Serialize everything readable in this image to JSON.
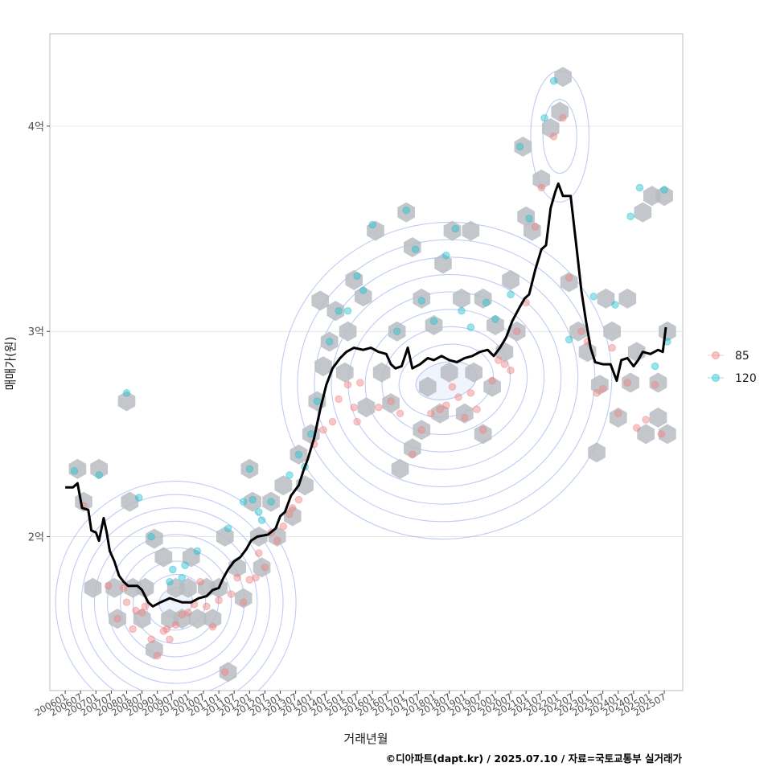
{
  "chart_data": {
    "type": "scatter",
    "xlabel": "거래년월",
    "ylabel": "매매가(원)",
    "caption": "©디아파트(dapt.kr) / 2025.07.10 / 자료=국토교통부 실거래가",
    "y_tick_labels": [
      "2억",
      "3억",
      "4억"
    ],
    "y_ticks": [
      2.0,
      3.0,
      4.0
    ],
    "ylim": [
      1.25,
      4.45
    ],
    "xlim": [
      2005.5,
      2026.1
    ],
    "x_tick_labels": [
      "200601",
      "200607",
      "200701",
      "200707",
      "200801",
      "200807",
      "200901",
      "200907",
      "201001",
      "201007",
      "201101",
      "201107",
      "201201",
      "201207",
      "201301",
      "201307",
      "201401",
      "201407",
      "201501",
      "201507",
      "201601",
      "201607",
      "201701",
      "201707",
      "201801",
      "201807",
      "201901",
      "201907",
      "202001",
      "202007",
      "202101",
      "202107",
      "202201",
      "202207",
      "202301",
      "202307",
      "202401",
      "202407",
      "202501",
      "202507"
    ],
    "grid": true,
    "legend_position": "right",
    "colors": {
      "size_85": "#f08080",
      "size_120": "#20c0d0",
      "hex": "#b8bcc2",
      "contour": "#6f8fe8",
      "trend": "#000000"
    },
    "legend": [
      {
        "label": "85",
        "color": "#f08080"
      },
      {
        "label": "120",
        "color": "#20c0d0"
      }
    ],
    "series": [
      {
        "name": "85",
        "points": [
          [
            2006.6,
            2.15
          ],
          [
            2007.4,
            1.76
          ],
          [
            2007.7,
            1.6
          ],
          [
            2007.9,
            1.75
          ],
          [
            2008.0,
            1.68
          ],
          [
            2008.2,
            1.55
          ],
          [
            2008.3,
            1.64
          ],
          [
            2008.5,
            1.63
          ],
          [
            2008.6,
            1.66
          ],
          [
            2008.8,
            1.5
          ],
          [
            2009.0,
            1.42
          ],
          [
            2009.2,
            1.54
          ],
          [
            2009.3,
            1.55
          ],
          [
            2009.4,
            1.5
          ],
          [
            2009.6,
            1.57
          ],
          [
            2009.8,
            1.62
          ],
          [
            2010.0,
            1.63
          ],
          [
            2010.2,
            1.67
          ],
          [
            2010.4,
            1.78
          ],
          [
            2010.6,
            1.66
          ],
          [
            2010.8,
            1.56
          ],
          [
            2011.0,
            1.69
          ],
          [
            2011.2,
            1.34
          ],
          [
            2011.4,
            1.72
          ],
          [
            2011.6,
            1.8
          ],
          [
            2011.8,
            1.68
          ],
          [
            2012.0,
            1.79
          ],
          [
            2012.2,
            1.8
          ],
          [
            2012.3,
            1.92
          ],
          [
            2012.5,
            1.85
          ],
          [
            2012.7,
            2.02
          ],
          [
            2012.9,
            1.98
          ],
          [
            2013.1,
            2.05
          ],
          [
            2013.3,
            2.11
          ],
          [
            2013.4,
            2.14
          ],
          [
            2013.6,
            2.18
          ],
          [
            2014.1,
            2.45
          ],
          [
            2014.4,
            2.52
          ],
          [
            2014.7,
            2.56
          ],
          [
            2014.9,
            2.67
          ],
          [
            2015.2,
            2.74
          ],
          [
            2015.4,
            2.63
          ],
          [
            2015.5,
            2.56
          ],
          [
            2015.6,
            2.75
          ],
          [
            2016.2,
            2.63
          ],
          [
            2016.6,
            2.66
          ],
          [
            2016.9,
            2.6
          ],
          [
            2017.3,
            2.4
          ],
          [
            2017.6,
            2.52
          ],
          [
            2017.9,
            2.6
          ],
          [
            2018.2,
            2.62
          ],
          [
            2018.4,
            2.64
          ],
          [
            2018.6,
            2.73
          ],
          [
            2018.8,
            2.68
          ],
          [
            2019.0,
            2.58
          ],
          [
            2019.2,
            2.7
          ],
          [
            2019.4,
            2.62
          ],
          [
            2019.6,
            2.52
          ],
          [
            2019.9,
            2.76
          ],
          [
            2020.1,
            2.86
          ],
          [
            2020.3,
            2.84
          ],
          [
            2020.5,
            2.81
          ],
          [
            2020.7,
            3.0
          ],
          [
            2021.0,
            3.14
          ],
          [
            2021.3,
            3.51
          ],
          [
            2021.5,
            3.7
          ],
          [
            2021.9,
            3.95
          ],
          [
            2022.2,
            4.04
          ],
          [
            2022.4,
            3.26
          ],
          [
            2022.8,
            3.0
          ],
          [
            2023.0,
            2.95
          ],
          [
            2023.3,
            2.7
          ],
          [
            2023.5,
            2.72
          ],
          [
            2023.8,
            2.92
          ],
          [
            2024.0,
            2.6
          ],
          [
            2024.3,
            2.75
          ],
          [
            2024.6,
            2.53
          ],
          [
            2024.9,
            2.57
          ],
          [
            2025.2,
            2.74
          ],
          [
            2025.4,
            2.5
          ]
        ]
      },
      {
        "name": "120",
        "points": [
          [
            2006.3,
            2.32
          ],
          [
            2007.1,
            2.3
          ],
          [
            2008.0,
            2.7
          ],
          [
            2008.4,
            2.19
          ],
          [
            2008.8,
            2.0
          ],
          [
            2009.4,
            1.78
          ],
          [
            2009.5,
            1.84
          ],
          [
            2009.8,
            1.8
          ],
          [
            2009.9,
            1.86
          ],
          [
            2010.3,
            1.93
          ],
          [
            2011.3,
            2.04
          ],
          [
            2011.8,
            2.17
          ],
          [
            2012.0,
            2.33
          ],
          [
            2012.1,
            2.18
          ],
          [
            2012.3,
            2.12
          ],
          [
            2012.4,
            2.08
          ],
          [
            2012.7,
            2.17
          ],
          [
            2013.3,
            2.3
          ],
          [
            2013.6,
            2.4
          ],
          [
            2013.8,
            2.34
          ],
          [
            2014.0,
            2.5
          ],
          [
            2014.2,
            2.66
          ],
          [
            2014.6,
            2.95
          ],
          [
            2014.9,
            3.1
          ],
          [
            2015.2,
            3.1
          ],
          [
            2015.5,
            3.27
          ],
          [
            2015.7,
            3.2
          ],
          [
            2016.0,
            3.52
          ],
          [
            2016.8,
            3.0
          ],
          [
            2017.1,
            3.59
          ],
          [
            2017.4,
            3.4
          ],
          [
            2017.6,
            3.15
          ],
          [
            2018.0,
            3.05
          ],
          [
            2018.4,
            3.37
          ],
          [
            2018.7,
            3.5
          ],
          [
            2018.9,
            3.1
          ],
          [
            2019.2,
            3.02
          ],
          [
            2019.7,
            3.14
          ],
          [
            2020.0,
            3.06
          ],
          [
            2020.5,
            3.18
          ],
          [
            2020.8,
            3.9
          ],
          [
            2021.1,
            3.55
          ],
          [
            2021.6,
            4.04
          ],
          [
            2021.9,
            4.22
          ],
          [
            2022.4,
            2.96
          ],
          [
            2023.2,
            3.17
          ],
          [
            2023.9,
            3.13
          ],
          [
            2024.4,
            3.56
          ],
          [
            2024.7,
            3.7
          ],
          [
            2025.2,
            2.83
          ],
          [
            2025.5,
            3.69
          ],
          [
            2025.6,
            2.95
          ]
        ]
      }
    ],
    "hexbins": [
      [
        2006.4,
        2.33
      ],
      [
        2006.6,
        2.17
      ],
      [
        2007.1,
        2.33
      ],
      [
        2006.9,
        1.75
      ],
      [
        2007.7,
        1.6
      ],
      [
        2007.6,
        1.75
      ],
      [
        2008.0,
        2.66
      ],
      [
        2008.1,
        2.17
      ],
      [
        2008.2,
        1.75
      ],
      [
        2008.5,
        1.6
      ],
      [
        2008.6,
        1.75
      ],
      [
        2008.9,
        1.99
      ],
      [
        2008.9,
        1.45
      ],
      [
        2009.2,
        1.9
      ],
      [
        2009.4,
        1.6
      ],
      [
        2009.6,
        1.75
      ],
      [
        2009.8,
        1.6
      ],
      [
        2010.1,
        1.9
      ],
      [
        2010.0,
        1.75
      ],
      [
        2010.3,
        1.6
      ],
      [
        2010.6,
        1.75
      ],
      [
        2010.8,
        1.6
      ],
      [
        2011.0,
        1.75
      ],
      [
        2011.3,
        1.34
      ],
      [
        2011.2,
        2.0
      ],
      [
        2011.6,
        1.85
      ],
      [
        2011.8,
        1.7
      ],
      [
        2012.0,
        2.33
      ],
      [
        2012.1,
        2.17
      ],
      [
        2012.3,
        2.0
      ],
      [
        2012.4,
        1.85
      ],
      [
        2012.7,
        2.17
      ],
      [
        2012.9,
        2.0
      ],
      [
        2013.1,
        2.25
      ],
      [
        2013.4,
        2.1
      ],
      [
        2013.6,
        2.4
      ],
      [
        2013.8,
        2.25
      ],
      [
        2014.0,
        2.5
      ],
      [
        2014.2,
        2.66
      ],
      [
        2014.4,
        2.83
      ],
      [
        2014.3,
        3.15
      ],
      [
        2014.6,
        2.95
      ],
      [
        2014.8,
        3.1
      ],
      [
        2015.1,
        2.8
      ],
      [
        2015.2,
        3.0
      ],
      [
        2015.4,
        3.25
      ],
      [
        2015.7,
        3.17
      ],
      [
        2015.8,
        2.63
      ],
      [
        2016.1,
        3.49
      ],
      [
        2016.3,
        2.8
      ],
      [
        2016.6,
        2.65
      ],
      [
        2016.8,
        3.0
      ],
      [
        2016.9,
        2.33
      ],
      [
        2017.1,
        3.58
      ],
      [
        2017.3,
        3.41
      ],
      [
        2017.3,
        2.43
      ],
      [
        2017.6,
        2.52
      ],
      [
        2017.6,
        3.16
      ],
      [
        2017.8,
        2.73
      ],
      [
        2018.0,
        3.03
      ],
      [
        2018.3,
        3.33
      ],
      [
        2018.2,
        2.6
      ],
      [
        2018.5,
        2.8
      ],
      [
        2018.6,
        3.49
      ],
      [
        2018.9,
        3.16
      ],
      [
        2019.0,
        2.6
      ],
      [
        2019.2,
        3.49
      ],
      [
        2019.3,
        2.8
      ],
      [
        2019.6,
        3.16
      ],
      [
        2019.6,
        2.5
      ],
      [
        2019.9,
        2.73
      ],
      [
        2020.0,
        3.03
      ],
      [
        2020.3,
        2.9
      ],
      [
        2020.5,
        3.25
      ],
      [
        2020.7,
        3.0
      ],
      [
        2020.9,
        3.9
      ],
      [
        2021.0,
        3.56
      ],
      [
        2021.2,
        3.49
      ],
      [
        2021.5,
        3.74
      ],
      [
        2021.8,
        3.99
      ],
      [
        2022.1,
        4.07
      ],
      [
        2022.2,
        4.24
      ],
      [
        2022.4,
        3.24
      ],
      [
        2022.7,
        3.0
      ],
      [
        2023.0,
        2.9
      ],
      [
        2023.3,
        2.41
      ],
      [
        2023.4,
        2.74
      ],
      [
        2023.6,
        3.16
      ],
      [
        2023.8,
        3.0
      ],
      [
        2024.0,
        2.58
      ],
      [
        2024.3,
        3.16
      ],
      [
        2024.4,
        2.75
      ],
      [
        2024.6,
        2.9
      ],
      [
        2024.8,
        3.58
      ],
      [
        2024.9,
        2.5
      ],
      [
        2025.1,
        3.66
      ],
      [
        2025.3,
        2.58
      ],
      [
        2025.3,
        2.75
      ],
      [
        2025.5,
        3.66
      ],
      [
        2025.6,
        3.0
      ],
      [
        2025.6,
        2.5
      ]
    ],
    "trend_line": [
      [
        2006.0,
        2.24
      ],
      [
        2006.25,
        2.24
      ],
      [
        2006.4,
        2.26
      ],
      [
        2006.55,
        2.14
      ],
      [
        2006.75,
        2.13
      ],
      [
        2006.85,
        2.03
      ],
      [
        2007.0,
        2.02
      ],
      [
        2007.1,
        1.98
      ],
      [
        2007.25,
        2.09
      ],
      [
        2007.35,
        2.02
      ],
      [
        2007.45,
        1.93
      ],
      [
        2007.6,
        1.88
      ],
      [
        2007.75,
        1.81
      ],
      [
        2007.9,
        1.78
      ],
      [
        2008.05,
        1.76
      ],
      [
        2008.35,
        1.76
      ],
      [
        2008.5,
        1.74
      ],
      [
        2008.7,
        1.68
      ],
      [
        2008.85,
        1.66
      ],
      [
        2009.1,
        1.68
      ],
      [
        2009.4,
        1.7
      ],
      [
        2009.6,
        1.69
      ],
      [
        2009.8,
        1.68
      ],
      [
        2010.1,
        1.68
      ],
      [
        2010.35,
        1.7
      ],
      [
        2010.6,
        1.71
      ],
      [
        2010.8,
        1.74
      ],
      [
        2011.0,
        1.75
      ],
      [
        2011.15,
        1.8
      ],
      [
        2011.3,
        1.84
      ],
      [
        2011.5,
        1.88
      ],
      [
        2011.7,
        1.9
      ],
      [
        2011.9,
        1.94
      ],
      [
        2012.05,
        1.98
      ],
      [
        2012.25,
        2.0
      ],
      [
        2012.6,
        2.01
      ],
      [
        2012.85,
        2.04
      ],
      [
        2013.0,
        2.1
      ],
      [
        2013.15,
        2.12
      ],
      [
        2013.35,
        2.2
      ],
      [
        2013.6,
        2.25
      ],
      [
        2013.75,
        2.32
      ],
      [
        2013.9,
        2.38
      ],
      [
        2014.1,
        2.48
      ],
      [
        2014.3,
        2.62
      ],
      [
        2014.5,
        2.74
      ],
      [
        2014.7,
        2.82
      ],
      [
        2014.95,
        2.87
      ],
      [
        2015.15,
        2.9
      ],
      [
        2015.4,
        2.92
      ],
      [
        2015.7,
        2.91
      ],
      [
        2015.95,
        2.92
      ],
      [
        2016.2,
        2.9
      ],
      [
        2016.45,
        2.89
      ],
      [
        2016.6,
        2.84
      ],
      [
        2016.75,
        2.82
      ],
      [
        2016.95,
        2.83
      ],
      [
        2017.15,
        2.92
      ],
      [
        2017.3,
        2.82
      ],
      [
        2017.55,
        2.84
      ],
      [
        2017.8,
        2.87
      ],
      [
        2018.0,
        2.86
      ],
      [
        2018.25,
        2.88
      ],
      [
        2018.5,
        2.86
      ],
      [
        2018.75,
        2.85
      ],
      [
        2019.0,
        2.87
      ],
      [
        2019.25,
        2.88
      ],
      [
        2019.5,
        2.9
      ],
      [
        2019.75,
        2.91
      ],
      [
        2019.95,
        2.88
      ],
      [
        2020.15,
        2.92
      ],
      [
        2020.35,
        2.97
      ],
      [
        2020.55,
        3.05
      ],
      [
        2020.8,
        3.12
      ],
      [
        2020.95,
        3.16
      ],
      [
        2021.1,
        3.18
      ],
      [
        2021.3,
        3.3
      ],
      [
        2021.5,
        3.4
      ],
      [
        2021.65,
        3.42
      ],
      [
        2021.8,
        3.6
      ],
      [
        2021.95,
        3.68
      ],
      [
        2022.05,
        3.72
      ],
      [
        2022.2,
        3.66
      ],
      [
        2022.45,
        3.66
      ],
      [
        2022.65,
        3.4
      ],
      [
        2022.8,
        3.2
      ],
      [
        2022.95,
        3.05
      ],
      [
        2023.1,
        2.92
      ],
      [
        2023.25,
        2.85
      ],
      [
        2023.5,
        2.84
      ],
      [
        2023.75,
        2.84
      ],
      [
        2023.95,
        2.76
      ],
      [
        2024.1,
        2.86
      ],
      [
        2024.3,
        2.87
      ],
      [
        2024.5,
        2.83
      ],
      [
        2024.65,
        2.86
      ],
      [
        2024.8,
        2.9
      ],
      [
        2025.05,
        2.89
      ],
      [
        2025.3,
        2.91
      ],
      [
        2025.45,
        2.9
      ],
      [
        2025.55,
        3.02
      ]
    ]
  }
}
